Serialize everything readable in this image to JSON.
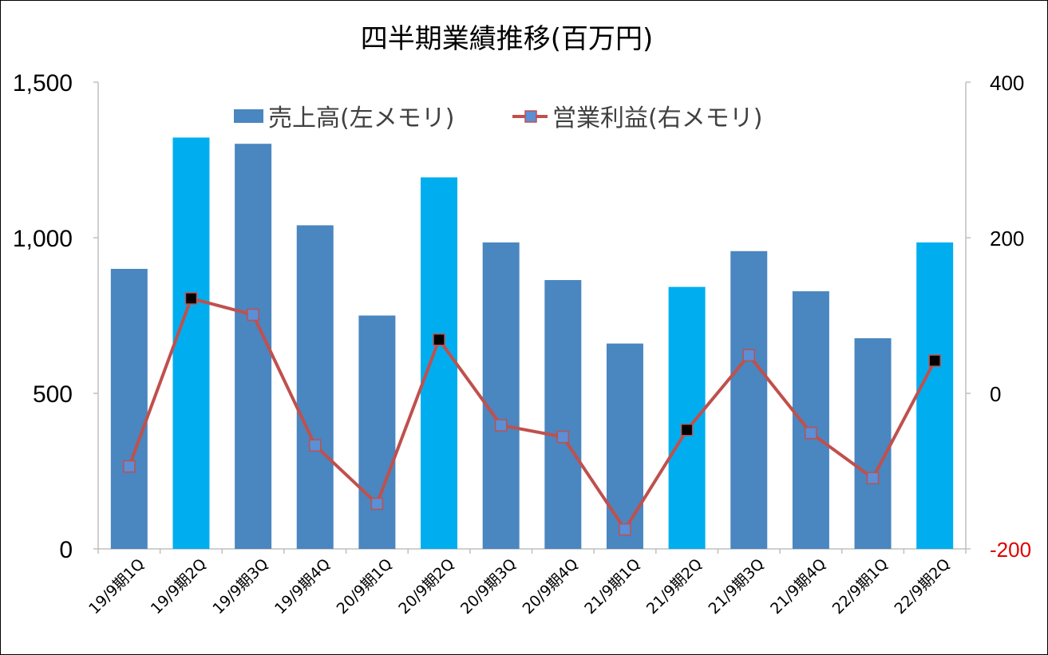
{
  "chart_data": {
    "type": "bar",
    "title": "四半期業績推移(百万円)",
    "categories": [
      "19/9期1Q",
      "19/9期2Q",
      "19/9期3Q",
      "19/9期4Q",
      "20/9期1Q",
      "20/9期2Q",
      "20/9期3Q",
      "20/9期4Q",
      "21/9期1Q",
      "21/9期2Q",
      "21/9期3Q",
      "21/9期4Q",
      "22/9期1Q",
      "22/9期2Q"
    ],
    "series": [
      {
        "name": "売上高(左メモリ)",
        "type": "bar",
        "axis": "left",
        "values": [
          900,
          1322,
          1302,
          1040,
          750,
          1194,
          985,
          864,
          660,
          842,
          957,
          828,
          677,
          985
        ],
        "colors": [
          "#4a86c0",
          "#00aeef",
          "#4a86c0",
          "#4a86c0",
          "#4a86c0",
          "#00aeef",
          "#4a86c0",
          "#4a86c0",
          "#4a86c0",
          "#00aeef",
          "#4a86c0",
          "#4a86c0",
          "#4a86c0",
          "#00aeef"
        ]
      },
      {
        "name": "営業利益(右メモリ)",
        "type": "line",
        "axis": "right",
        "values": [
          -94,
          122,
          101,
          -67,
          -142,
          69,
          -41,
          -56,
          -175,
          -47,
          49,
          -51,
          -109,
          42
        ],
        "line_color": "#c0504d",
        "marker_colors": [
          "#5b8fd6",
          "#000000",
          "#5b8fd6",
          "#5b8fd6",
          "#5b8fd6",
          "#000000",
          "#5b8fd6",
          "#5b8fd6",
          "#5b8fd6",
          "#000000",
          "#5b8fd6",
          "#5b8fd6",
          "#5b8fd6",
          "#000000"
        ]
      }
    ],
    "left_axis": {
      "ylim": [
        0,
        1500
      ],
      "ticks": [
        0,
        500,
        1000,
        1500
      ],
      "tick_labels": [
        "0",
        "500",
        "1,000",
        "1,500"
      ]
    },
    "right_axis": {
      "ylim": [
        -200,
        400
      ],
      "ticks": [
        -200,
        0,
        200,
        400
      ],
      "tick_labels": [
        "-200",
        "0",
        "200",
        "400"
      ],
      "negative_color": "#e00000"
    },
    "grid": false,
    "legend_position": "top-center",
    "xlabel": "",
    "ylabel": ""
  }
}
